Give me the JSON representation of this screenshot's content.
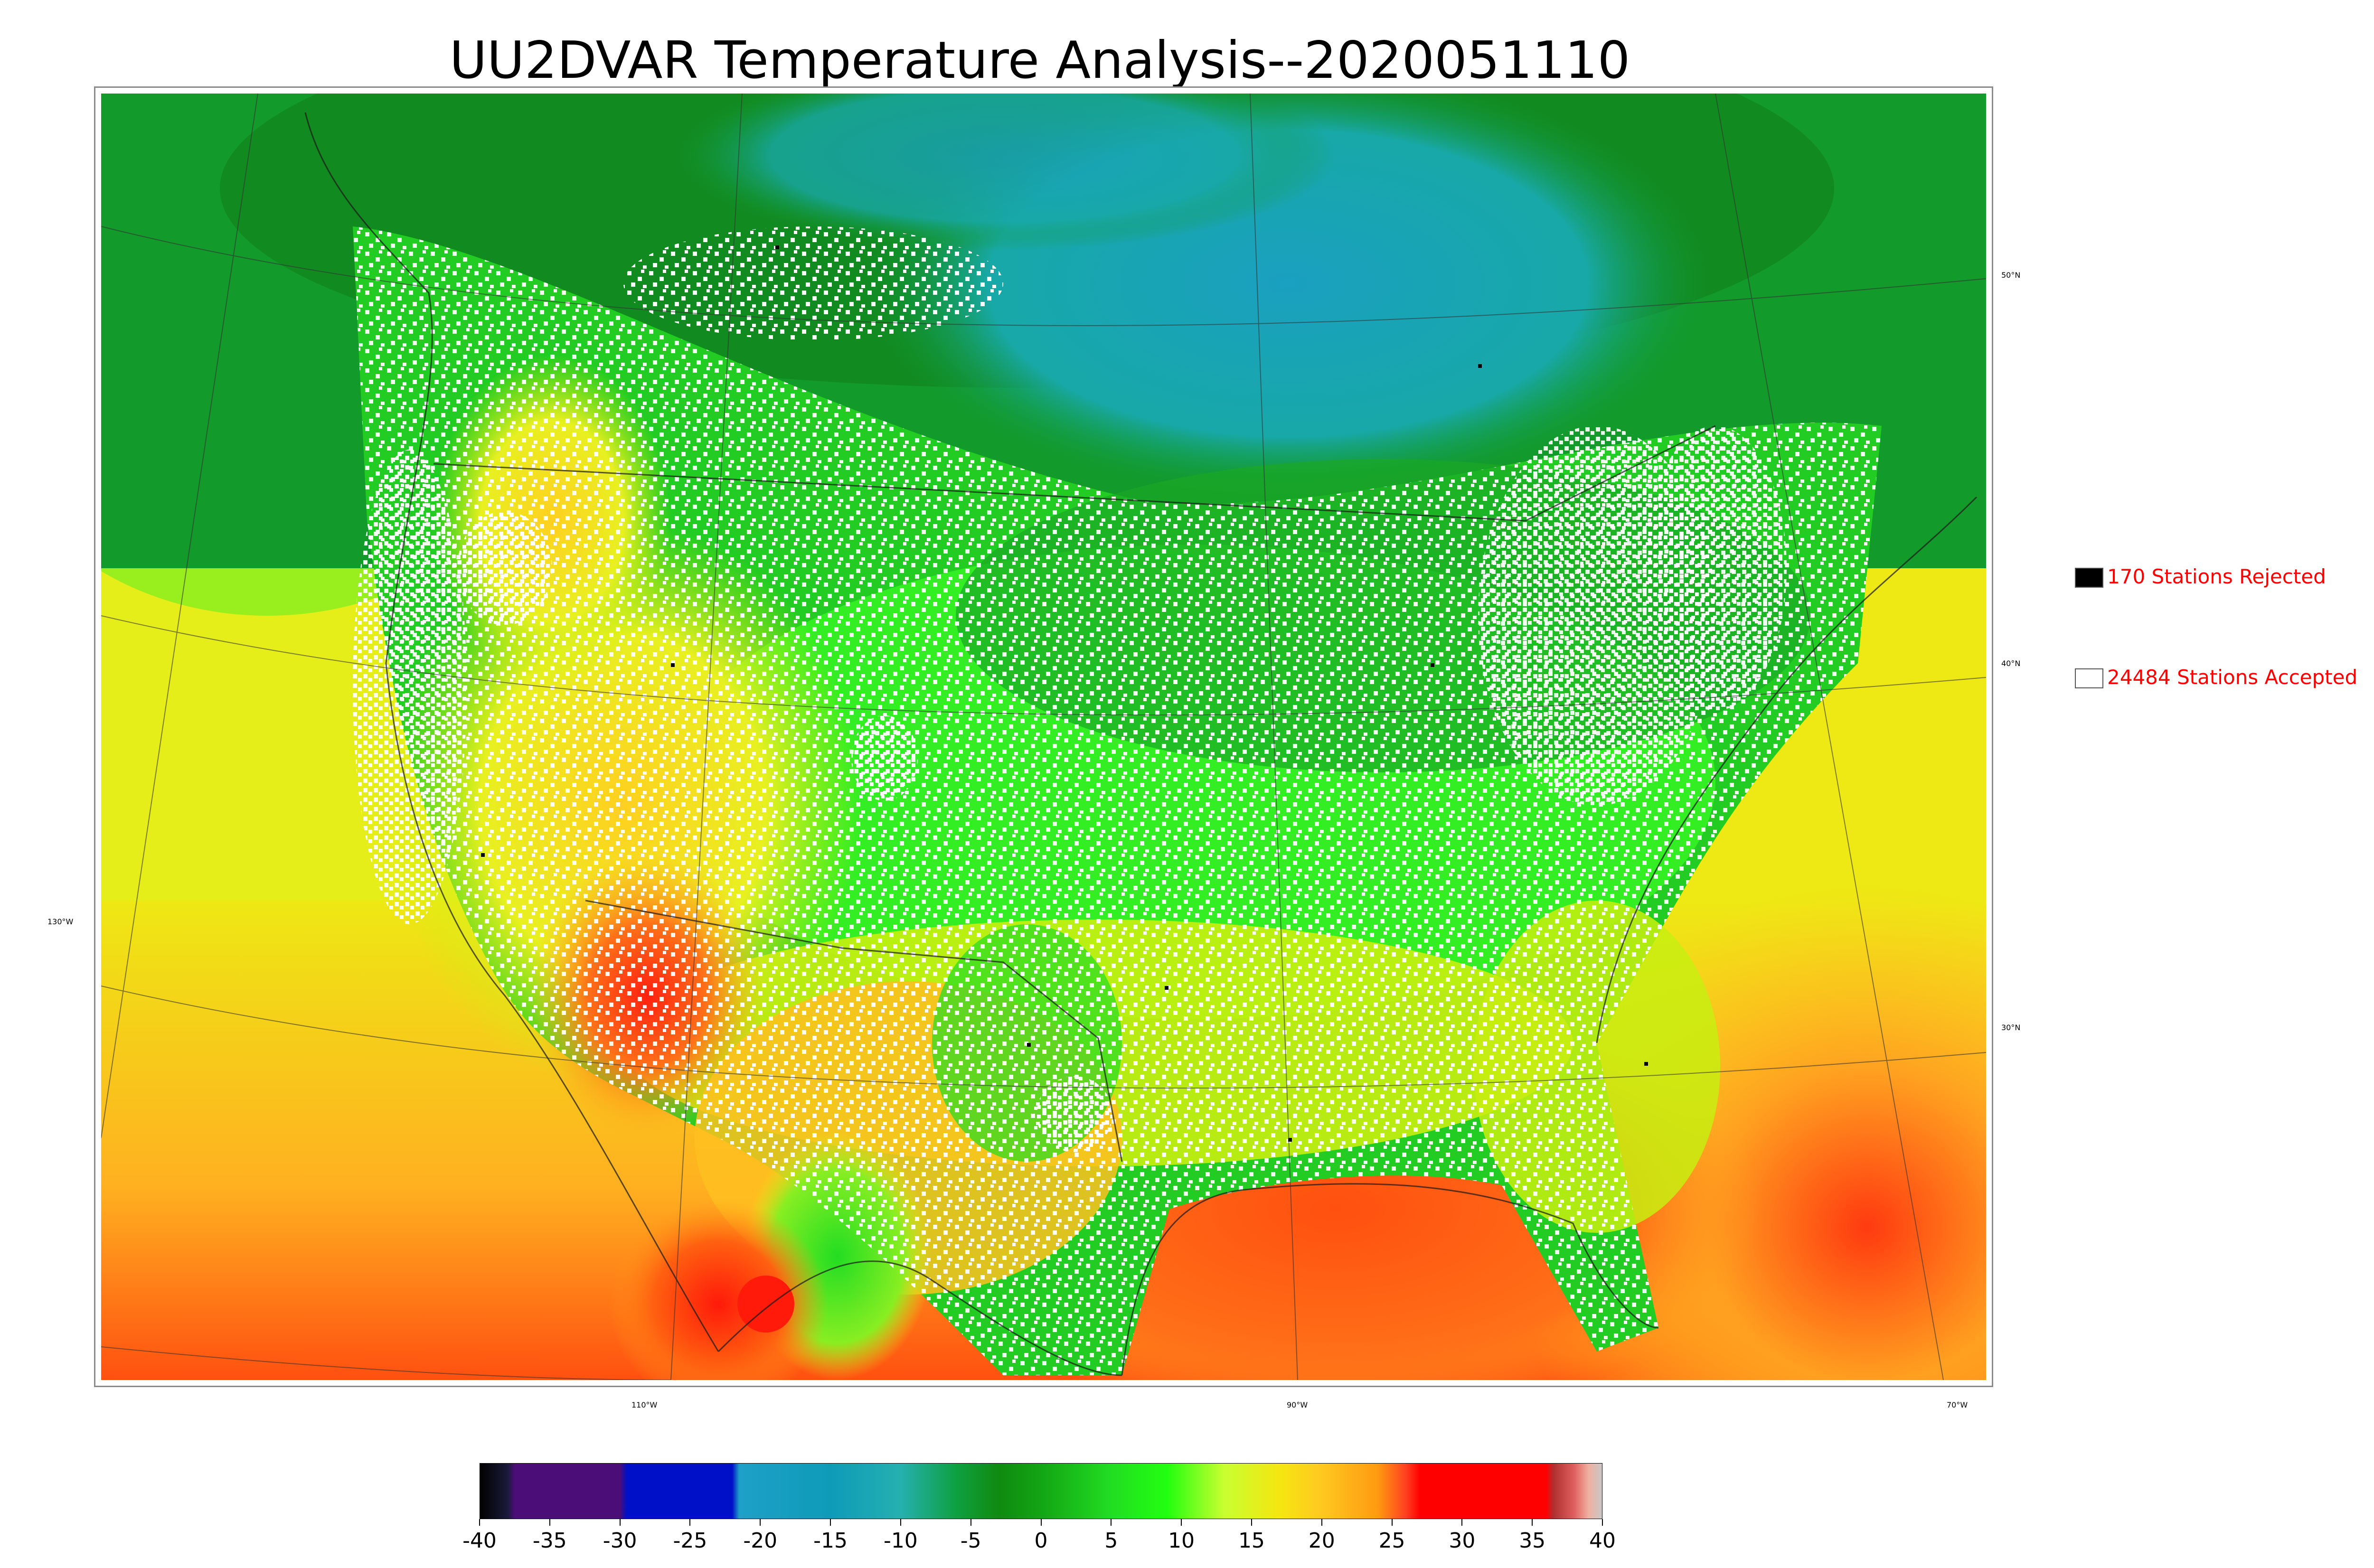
{
  "title": "UU2DVAR Temperature Analysis--2020051110",
  "map": {
    "lat_labels": [
      "50°N",
      "40°N",
      "30°N"
    ],
    "lon_labels": [
      "130°W",
      "110°W",
      "90°W",
      "70°W"
    ],
    "colors": {
      "cold_canada": "#1a9fb0",
      "cool_north": "#129a2a",
      "mid_green": "#22cc22",
      "bright_green": "#33ee22",
      "yellow_green": "#c8ee10",
      "yellow": "#eee814",
      "orange": "#ffb020",
      "red_orange": "#ff5010",
      "hot_red": "#e61b0d",
      "station_accepted": "#ffffff",
      "station_rejected": "#000000"
    }
  },
  "legend": {
    "rejected": {
      "count": 170,
      "label": "170 Stations Rejected",
      "color": "#000000"
    },
    "accepted": {
      "count": 24484,
      "label": "24484 Stations Accepted",
      "color": "#ffffff"
    }
  },
  "colorbar": {
    "min": -40,
    "max": 40,
    "ticks": [
      "-40",
      "-35",
      "-30",
      "-25",
      "-20",
      "-15",
      "-10",
      "-5",
      "0",
      "5",
      "10",
      "15",
      "20",
      "25",
      "30",
      "35",
      "40"
    ],
    "stops": [
      {
        "v": -40,
        "c": "#000000"
      },
      {
        "v": -38,
        "c": "#1a1a3a"
      },
      {
        "v": -37.5,
        "c": "#4b0d78"
      },
      {
        "v": -30,
        "c": "#4b0d78"
      },
      {
        "v": -29.5,
        "c": "#0010c8"
      },
      {
        "v": -22,
        "c": "#0010c8"
      },
      {
        "v": -21.5,
        "c": "#1ea0c8"
      },
      {
        "v": -15,
        "c": "#0e9bb8"
      },
      {
        "v": -10,
        "c": "#25b0b0"
      },
      {
        "v": -6,
        "c": "#0ea040"
      },
      {
        "v": -3,
        "c": "#108a10"
      },
      {
        "v": 0,
        "c": "#12a514"
      },
      {
        "v": 5,
        "c": "#22dd22"
      },
      {
        "v": 9,
        "c": "#22ff10"
      },
      {
        "v": 13,
        "c": "#c8ff30"
      },
      {
        "v": 17,
        "c": "#f5e610"
      },
      {
        "v": 20,
        "c": "#ffc820"
      },
      {
        "v": 24,
        "c": "#ff9a10"
      },
      {
        "v": 26,
        "c": "#ff4020"
      },
      {
        "v": 27,
        "c": "#ff0000"
      },
      {
        "v": 36,
        "c": "#ff0000"
      },
      {
        "v": 36.5,
        "c": "#b03030"
      },
      {
        "v": 38,
        "c": "#e06060"
      },
      {
        "v": 39,
        "c": "#f0b0a0"
      },
      {
        "v": 40,
        "c": "#c8c8c8"
      }
    ]
  }
}
